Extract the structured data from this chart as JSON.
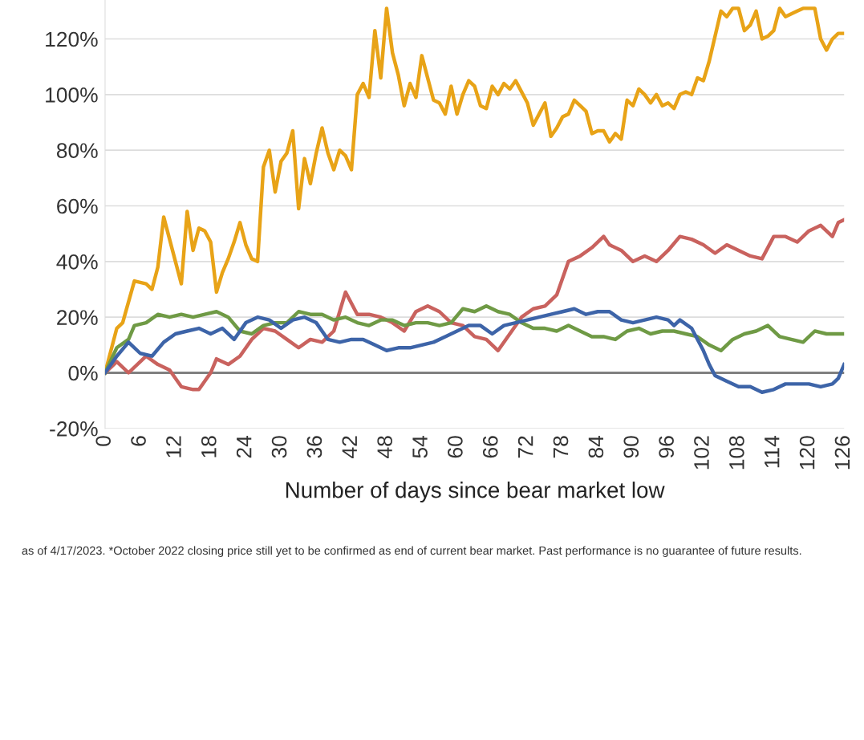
{
  "chart_data": {
    "type": "line",
    "xlabel": "Number of days since bear market low",
    "annotations": [
      "as of 4/17/2023. *October 2022 closing price still yet to be confirmed as end of current bear market. Past performance is no guarantee of future results."
    ],
    "xlim": [
      0,
      126
    ],
    "xticks": [
      0,
      6,
      12,
      18,
      24,
      30,
      36,
      42,
      48,
      54,
      60,
      66,
      72,
      78,
      84,
      90,
      96,
      102,
      108,
      114,
      120,
      126
    ],
    "ylim": [
      -20,
      134
    ],
    "yticks": [
      {
        "value": -20,
        "label": "-20%"
      },
      {
        "value": 0,
        "label": "0%"
      },
      {
        "value": 20,
        "label": "20%"
      },
      {
        "value": 40,
        "label": "40%"
      },
      {
        "value": 60,
        "label": "60%"
      },
      {
        "value": 80,
        "label": "80%"
      },
      {
        "value": 100,
        "label": "100%"
      },
      {
        "value": 120,
        "label": "120%"
      }
    ],
    "grid": "y",
    "legend": false,
    "line_style": "solid",
    "marker": "none",
    "ref_lines": [
      {
        "axis": "y",
        "value": 0,
        "label": null,
        "color": "#808080"
      }
    ],
    "series": [
      {
        "color": "#e8a317",
        "x": [
          0,
          2,
          3,
          5,
          7,
          8,
          9,
          10,
          12,
          13,
          14,
          15,
          16,
          17,
          18,
          19,
          20,
          21,
          22,
          23,
          24,
          25,
          26,
          27,
          28,
          29,
          30,
          31,
          32,
          33,
          34,
          35,
          36,
          37,
          38,
          39,
          40,
          41,
          42,
          43,
          44,
          45,
          46,
          47,
          48,
          49,
          50,
          51,
          52,
          53,
          54,
          55,
          56,
          57,
          58,
          59,
          60,
          61,
          62,
          63,
          64,
          65,
          66,
          67,
          68,
          69,
          70,
          71,
          72,
          73,
          74,
          75,
          76,
          77,
          78,
          79,
          80,
          81,
          82,
          83,
          84,
          85,
          86,
          87,
          88,
          89,
          90,
          91,
          92,
          93,
          94,
          95,
          96,
          97,
          98,
          99,
          100,
          101,
          102,
          103,
          104,
          105,
          106,
          107,
          108,
          109,
          110,
          111,
          112,
          113,
          114,
          115,
          116,
          117,
          118,
          119,
          120,
          121,
          122,
          123,
          124,
          125,
          126
        ],
        "values": [
          0,
          16,
          18,
          33,
          32,
          30,
          38,
          56,
          40,
          32,
          58,
          44,
          52,
          51,
          47,
          29,
          36,
          41,
          47,
          54,
          46,
          41,
          40,
          74,
          80,
          65,
          76,
          79,
          87,
          59,
          77,
          68,
          79,
          88,
          79,
          73,
          80,
          78,
          73,
          100,
          104,
          99,
          123,
          106,
          131,
          115,
          107,
          96,
          104,
          99,
          114,
          106,
          98,
          97,
          93,
          103,
          93,
          100,
          105,
          103,
          96,
          95,
          103,
          100,
          104,
          102,
          105,
          101,
          97,
          89,
          93,
          97,
          85,
          88,
          92,
          93,
          98,
          96,
          94,
          86,
          87,
          87,
          83,
          86,
          84,
          98,
          96,
          102,
          100,
          97,
          100,
          96,
          97,
          95,
          100,
          101,
          100,
          106,
          105,
          112,
          121,
          130,
          128,
          131,
          131,
          123,
          125,
          130,
          120,
          121,
          123,
          131,
          128,
          129,
          130,
          131,
          131,
          131,
          120,
          116,
          120,
          122,
          122
        ]
      },
      {
        "color": "#c9625e",
        "x": [
          0,
          2,
          4,
          6,
          7,
          9,
          11,
          13,
          15,
          16,
          18,
          19,
          21,
          23,
          25,
          27,
          29,
          31,
          33,
          35,
          37,
          39,
          41,
          43,
          45,
          47,
          49,
          51,
          53,
          55,
          57,
          59,
          61,
          63,
          65,
          67,
          69,
          71,
          73,
          75,
          77,
          79,
          81,
          83,
          85,
          86,
          88,
          90,
          92,
          94,
          96,
          98,
          100,
          102,
          104,
          106,
          108,
          110,
          112,
          114,
          116,
          118,
          120,
          122,
          124,
          125,
          126
        ],
        "values": [
          0,
          4,
          0,
          4,
          6,
          3,
          1,
          -5,
          -6,
          -6,
          0,
          5,
          3,
          6,
          12,
          16,
          15,
          12,
          9,
          12,
          11,
          15,
          29,
          21,
          21,
          20,
          18,
          15,
          22,
          24,
          22,
          18,
          17,
          13,
          12,
          8,
          14,
          20,
          23,
          24,
          28,
          40,
          42,
          45,
          49,
          46,
          44,
          40,
          42,
          40,
          44,
          49,
          48,
          46,
          43,
          46,
          44,
          42,
          41,
          49,
          49,
          47,
          51,
          53,
          49,
          54,
          55
        ]
      },
      {
        "color": "#6f9a45",
        "x": [
          0,
          2,
          4,
          5,
          7,
          9,
          11,
          13,
          15,
          17,
          19,
          21,
          23,
          25,
          27,
          29,
          31,
          33,
          35,
          37,
          39,
          41,
          43,
          45,
          47,
          49,
          51,
          53,
          55,
          57,
          59,
          61,
          63,
          65,
          67,
          69,
          71,
          73,
          75,
          77,
          79,
          81,
          83,
          85,
          87,
          89,
          91,
          93,
          95,
          97,
          99,
          101,
          103,
          105,
          107,
          109,
          111,
          113,
          115,
          117,
          119,
          121,
          123,
          125,
          126
        ],
        "values": [
          0,
          9,
          12,
          17,
          18,
          21,
          20,
          21,
          20,
          21,
          22,
          20,
          15,
          14,
          17,
          18,
          18,
          22,
          21,
          21,
          19,
          20,
          18,
          17,
          19,
          19,
          17,
          18,
          18,
          17,
          18,
          23,
          22,
          24,
          22,
          21,
          18,
          16,
          16,
          15,
          17,
          15,
          13,
          13,
          12,
          15,
          16,
          14,
          15,
          15,
          14,
          13,
          10,
          8,
          12,
          14,
          15,
          17,
          13,
          12,
          11,
          15,
          14,
          14,
          14
        ]
      },
      {
        "color": "#3d64a8",
        "x": [
          0,
          2,
          4,
          6,
          8,
          10,
          12,
          14,
          16,
          18,
          20,
          22,
          24,
          26,
          28,
          30,
          32,
          34,
          36,
          38,
          40,
          42,
          44,
          46,
          48,
          50,
          52,
          54,
          56,
          58,
          60,
          62,
          64,
          66,
          68,
          70,
          72,
          74,
          76,
          78,
          80,
          82,
          84,
          86,
          88,
          90,
          92,
          94,
          96,
          97,
          98,
          100,
          102,
          103,
          104,
          106,
          108,
          110,
          112,
          114,
          116,
          118,
          120,
          122,
          124,
          125,
          126
        ],
        "values": [
          0,
          6,
          11,
          7,
          6,
          11,
          14,
          15,
          16,
          14,
          16,
          12,
          18,
          20,
          19,
          16,
          19,
          20,
          18,
          12,
          11,
          12,
          12,
          10,
          8,
          9,
          9,
          10,
          11,
          13,
          15,
          17,
          17,
          14,
          17,
          18,
          19,
          20,
          21,
          22,
          23,
          21,
          22,
          22,
          19,
          18,
          19,
          20,
          19,
          17,
          19,
          16,
          8,
          3,
          -1,
          -3,
          -5,
          -5,
          -7,
          -6,
          -4,
          -4,
          -4,
          -5,
          -4,
          -2,
          3
        ]
      }
    ]
  }
}
